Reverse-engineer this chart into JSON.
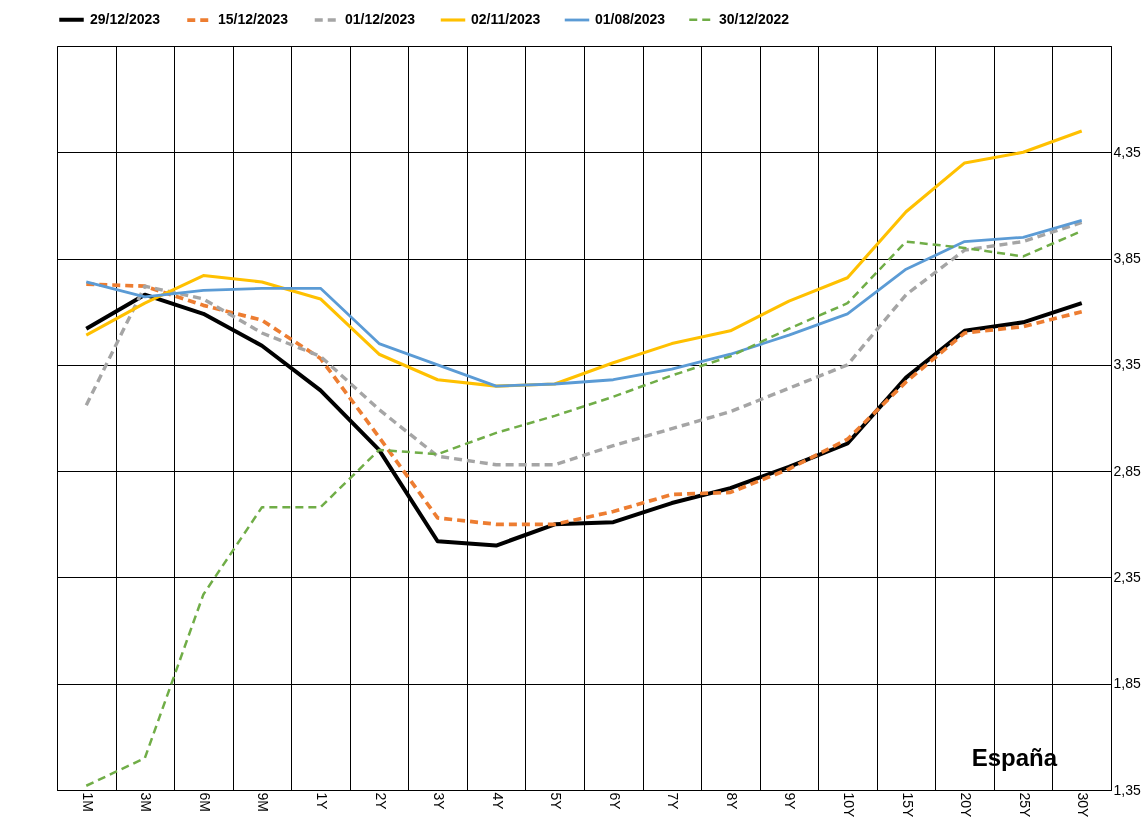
{
  "chart_data": {
    "type": "line",
    "categories": [
      "1M",
      "3M",
      "6M",
      "9M",
      "1Y",
      "2Y",
      "3Y",
      "4Y",
      "5Y",
      "6Y",
      "7Y",
      "8Y",
      "9Y",
      "10Y",
      "15Y",
      "20Y",
      "25Y",
      "30Y"
    ],
    "series": [
      {
        "name": "29/12/2023",
        "color": "#000000",
        "line_style": "solid",
        "values": [
          3.52,
          3.68,
          3.59,
          3.44,
          3.23,
          2.95,
          2.52,
          2.5,
          2.6,
          2.61,
          2.7,
          2.77,
          2.87,
          2.98,
          3.29,
          3.51,
          3.55,
          3.64
        ]
      },
      {
        "name": "15/12/2023",
        "color": "#ed7d31",
        "line_style": "dashed",
        "values": [
          3.73,
          3.72,
          3.63,
          3.56,
          3.38,
          3.01,
          2.63,
          2.6,
          2.6,
          2.66,
          2.74,
          2.75,
          2.86,
          3.0,
          3.27,
          3.5,
          3.53,
          3.6
        ]
      },
      {
        "name": "01/12/2023",
        "color": "#a5a5a5",
        "line_style": "dashed",
        "values": [
          3.16,
          3.72,
          3.66,
          3.5,
          3.39,
          3.14,
          2.92,
          2.88,
          2.88,
          2.97,
          3.05,
          3.13,
          3.24,
          3.35,
          3.68,
          3.89,
          3.93,
          4.02
        ]
      },
      {
        "name": "02/11/2023",
        "color": "#ffc000",
        "line_style": "solid",
        "values": [
          3.49,
          3.64,
          3.77,
          3.74,
          3.66,
          3.4,
          3.28,
          3.25,
          3.26,
          3.36,
          3.45,
          3.51,
          3.65,
          3.76,
          4.07,
          4.3,
          4.35,
          4.45
        ]
      },
      {
        "name": "01/08/2023",
        "color": "#5b9bd5",
        "line_style": "solid",
        "values": [
          3.74,
          3.67,
          3.7,
          3.71,
          3.71,
          3.45,
          3.35,
          3.25,
          3.26,
          3.28,
          3.33,
          3.4,
          3.49,
          3.59,
          3.8,
          3.93,
          3.95,
          4.03
        ]
      },
      {
        "name": "30/12/2022",
        "color": "#70ad47",
        "line_style": "dashed",
        "values": [
          1.37,
          1.5,
          2.27,
          2.68,
          2.68,
          2.95,
          2.93,
          3.03,
          3.11,
          3.2,
          3.3,
          3.39,
          3.52,
          3.64,
          3.93,
          3.9,
          3.86,
          3.98
        ]
      }
    ],
    "ylim": [
      1.35,
      4.85
    ],
    "yticks": [
      {
        "value": 1.35,
        "label": "1,35"
      },
      {
        "value": 1.85,
        "label": "1,85"
      },
      {
        "value": 2.35,
        "label": "2,35"
      },
      {
        "value": 2.85,
        "label": "2,85"
      },
      {
        "value": 3.35,
        "label": "3,35"
      },
      {
        "value": 3.85,
        "label": "3,85"
      },
      {
        "value": 4.35,
        "label": "4,35"
      }
    ],
    "grid": true,
    "legend": "top",
    "marker": "none",
    "annotations": [
      "España"
    ]
  }
}
